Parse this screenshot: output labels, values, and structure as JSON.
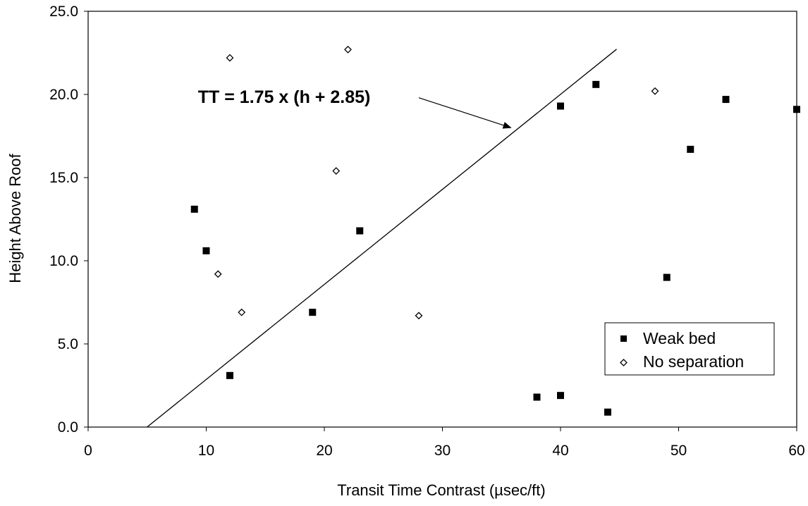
{
  "chart_data": {
    "type": "scatter",
    "xlabel": "Transit Time Contrast (µsec/ft)",
    "ylabel": "Height Above Roof",
    "xlim": [
      0,
      60
    ],
    "ylim": [
      0,
      25
    ],
    "x_ticks": [
      0,
      10,
      20,
      30,
      40,
      50,
      60
    ],
    "y_ticks": [
      0,
      5,
      10,
      15,
      20,
      25
    ],
    "x_tick_labels": [
      "0",
      "10",
      "20",
      "30",
      "40",
      "50",
      "60"
    ],
    "y_tick_labels": [
      "0.0",
      "5.0",
      "10.0",
      "15.0",
      "20.0",
      "25.0"
    ],
    "grid": false,
    "legend_position": "bottom-right",
    "series": [
      {
        "name": "Weak bed",
        "marker": "filled-square",
        "color": "#000000",
        "points": [
          {
            "x": 9,
            "y": 13.1
          },
          {
            "x": 10,
            "y": 10.6
          },
          {
            "x": 12,
            "y": 3.1
          },
          {
            "x": 19,
            "y": 6.9
          },
          {
            "x": 23,
            "y": 11.8
          },
          {
            "x": 38,
            "y": 1.8
          },
          {
            "x": 40,
            "y": 1.9
          },
          {
            "x": 40,
            "y": 19.3
          },
          {
            "x": 43,
            "y": 20.6
          },
          {
            "x": 44,
            "y": 0.9
          },
          {
            "x": 49,
            "y": 9.0
          },
          {
            "x": 51,
            "y": 16.7
          },
          {
            "x": 54,
            "y": 19.7
          },
          {
            "x": 60,
            "y": 19.1
          }
        ]
      },
      {
        "name": "No separation",
        "marker": "open-diamond",
        "color": "#000000",
        "points": [
          {
            "x": 11,
            "y": 9.2
          },
          {
            "x": 12,
            "y": 22.2
          },
          {
            "x": 13,
            "y": 6.9
          },
          {
            "x": 21,
            "y": 15.4
          },
          {
            "x": 22,
            "y": 22.7
          },
          {
            "x": 28,
            "y": 6.7
          },
          {
            "x": 48,
            "y": 20.2
          }
        ]
      }
    ],
    "fit_line": {
      "label": "TT = 1.75 x (h + 2.85)",
      "points": [
        {
          "x": 4.99,
          "y": 0
        },
        {
          "x": 44.75,
          "y": 22.72
        }
      ],
      "arrow_from": {
        "x": 28,
        "y": 19.8
      },
      "arrow_to": {
        "x": 35.8,
        "y": 18.0
      },
      "label_at": {
        "x": 9.3,
        "y": 19.5
      }
    }
  }
}
